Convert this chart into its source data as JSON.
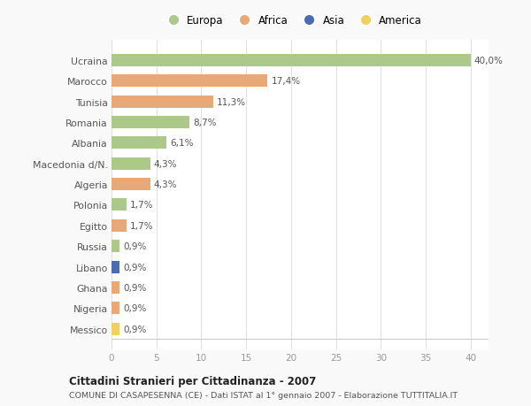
{
  "categories": [
    "Ucraina",
    "Marocco",
    "Tunisia",
    "Romania",
    "Albania",
    "Macedonia d/N.",
    "Algeria",
    "Polonia",
    "Egitto",
    "Russia",
    "Libano",
    "Ghana",
    "Nigeria",
    "Messico"
  ],
  "values": [
    40.0,
    17.4,
    11.3,
    8.7,
    6.1,
    4.3,
    4.3,
    1.7,
    1.7,
    0.9,
    0.9,
    0.9,
    0.9,
    0.9
  ],
  "labels": [
    "40,0%",
    "17,4%",
    "11,3%",
    "8,7%",
    "6,1%",
    "4,3%",
    "4,3%",
    "1,7%",
    "1,7%",
    "0,9%",
    "0,9%",
    "0,9%",
    "0,9%",
    "0,9%"
  ],
  "continents": [
    "Europa",
    "Africa",
    "Africa",
    "Europa",
    "Europa",
    "Europa",
    "Africa",
    "Europa",
    "Africa",
    "Europa",
    "Asia",
    "Africa",
    "Africa",
    "America"
  ],
  "continent_colors": {
    "Europa": "#adc98a",
    "Africa": "#e8a878",
    "Asia": "#4a6cb0",
    "America": "#f0d060"
  },
  "xlim": [
    0,
    42
  ],
  "xticks": [
    0,
    5,
    10,
    15,
    20,
    25,
    30,
    35,
    40
  ],
  "title": "Cittadini Stranieri per Cittadinanza - 2007",
  "subtitle": "COMUNE DI CASAPESENNA (CE) - Dati ISTAT al 1° gennaio 2007 - Elaborazione TUTTITALIA.IT",
  "background_color": "#f9f9f9",
  "plot_background": "#ffffff",
  "grid_color": "#e0e0e0",
  "bar_height": 0.6
}
